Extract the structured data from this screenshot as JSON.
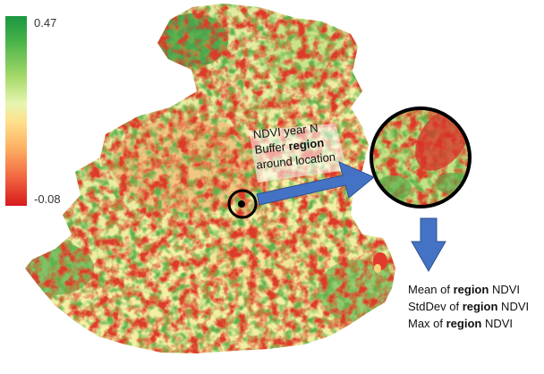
{
  "legend": {
    "max_label": "0.47",
    "min_label": "-0.08",
    "colors": [
      "#1a9641",
      "#a6d96a",
      "#fee08b",
      "#fdae61",
      "#d7191c"
    ]
  },
  "callout": {
    "line1": "NDVI year N",
    "line2_prefix": "Buffer ",
    "line2_bold": "region",
    "line3": "around location"
  },
  "stats": {
    "mean_prefix": "Mean of ",
    "std_prefix": "StdDev of ",
    "max_prefix": "Max of ",
    "bold_word": "region",
    "suffix": " NDVI"
  },
  "colors": {
    "arrow": "#4472c4",
    "arrow_stroke": "#2f528f",
    "circle_stroke": "#000000"
  }
}
